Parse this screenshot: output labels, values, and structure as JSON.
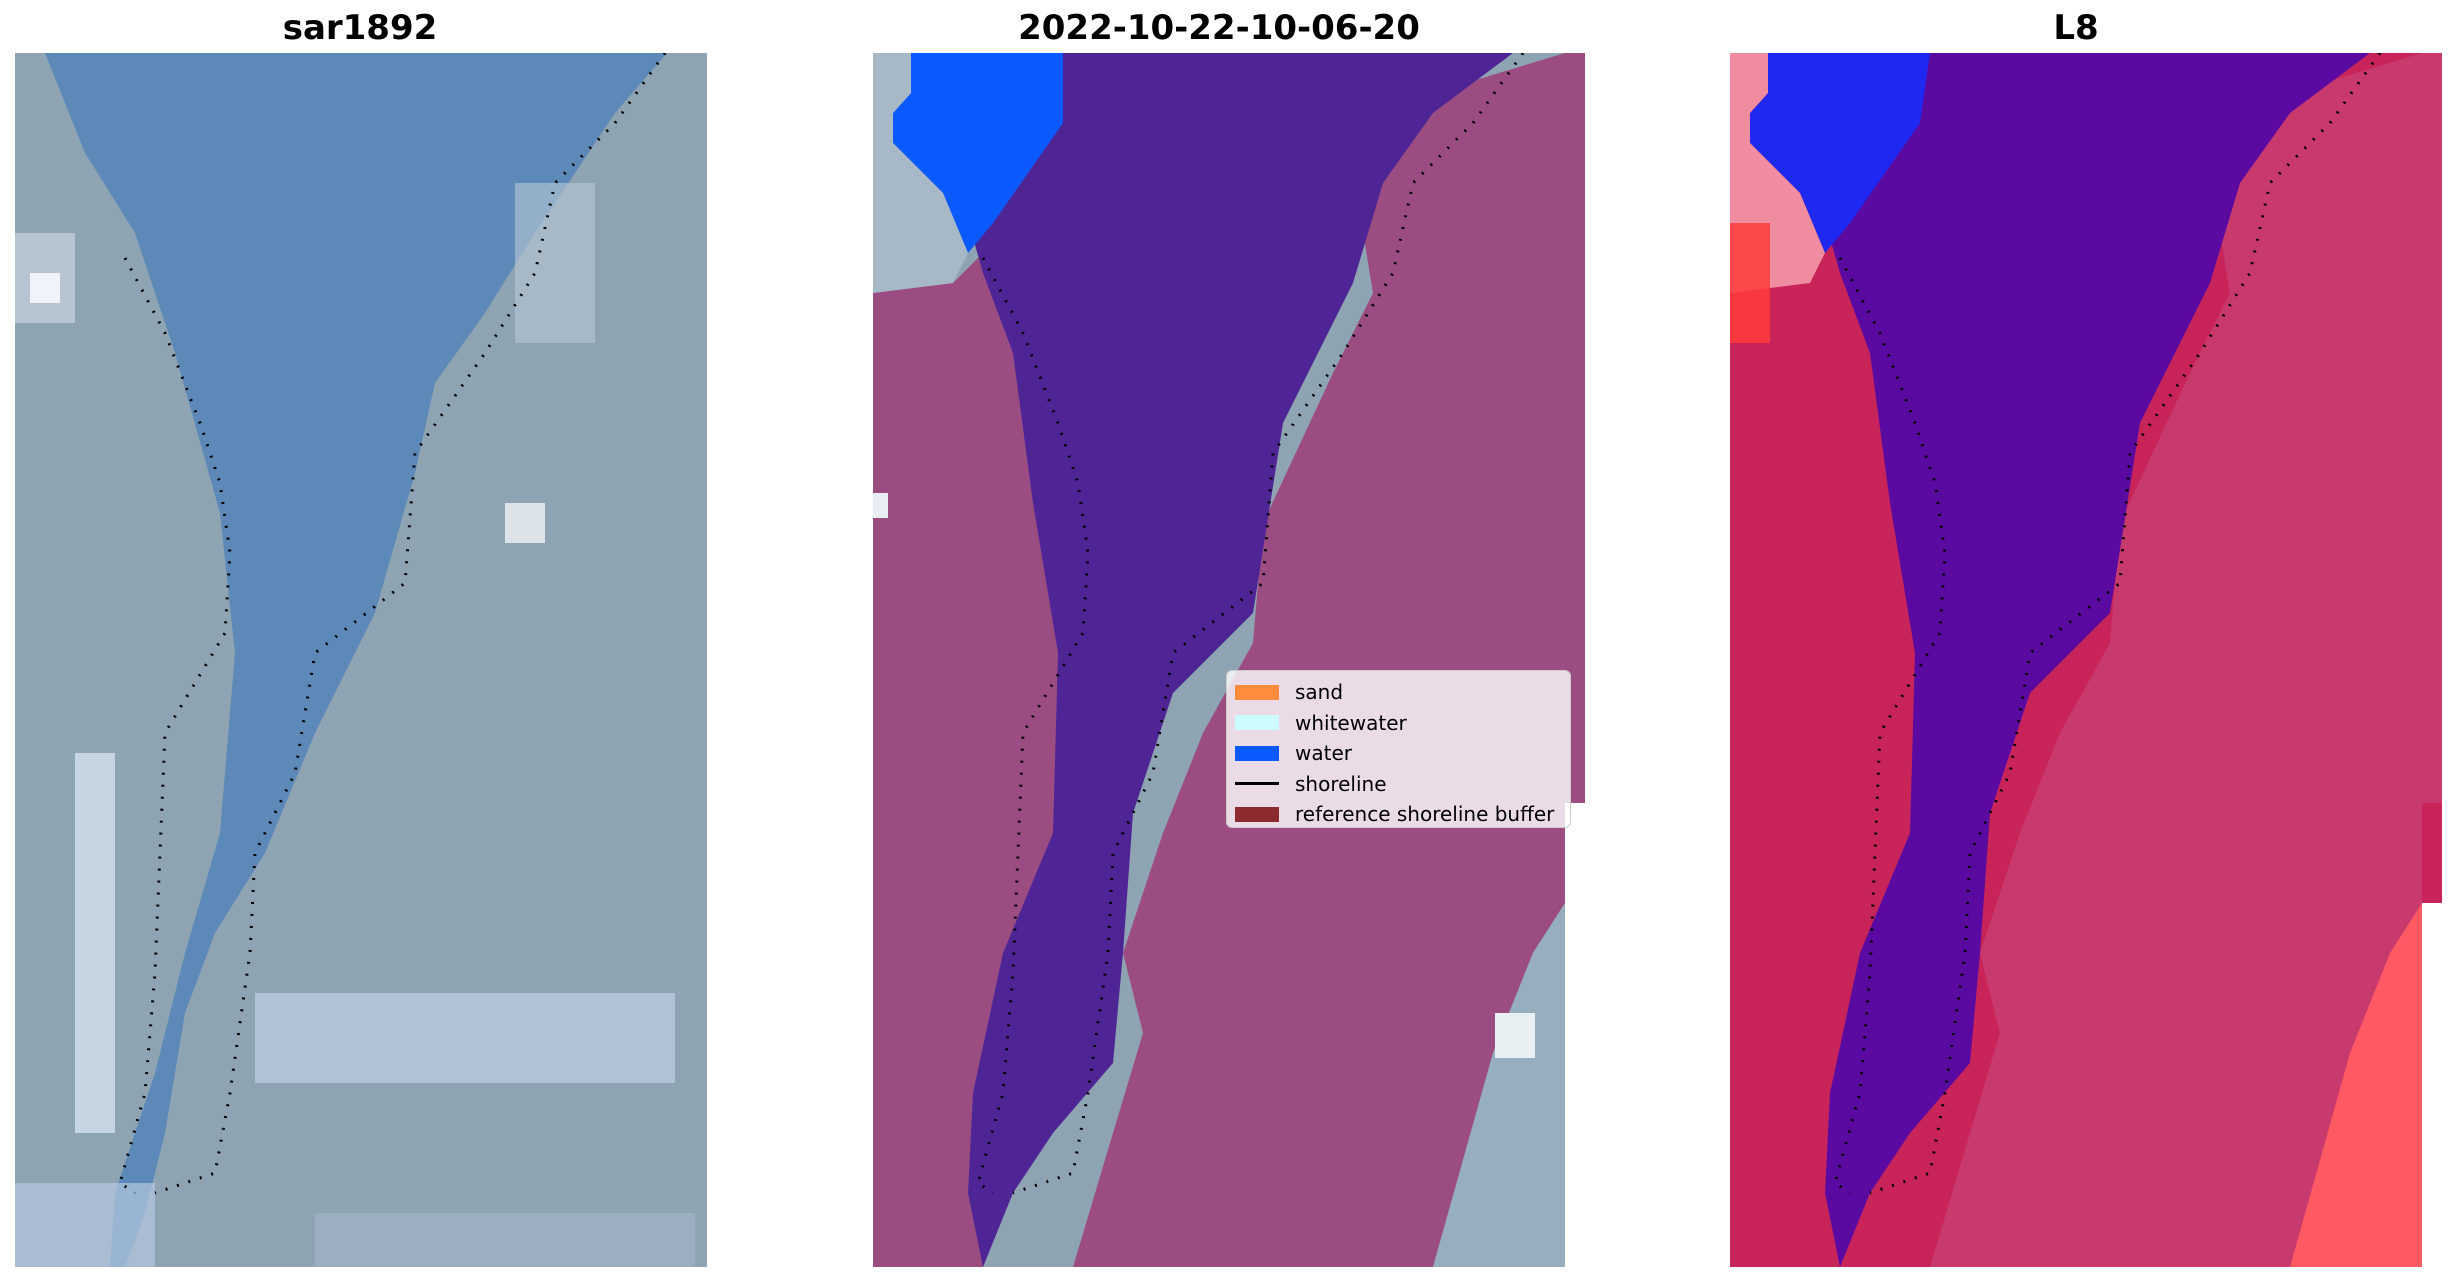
{
  "panels": [
    {
      "title": "sar1892"
    },
    {
      "title": "2022-10-22-10-06-20"
    },
    {
      "title": "L8"
    }
  ],
  "legend": {
    "items": [
      {
        "label": "sand",
        "type": "patch",
        "color": "#ff8c3c"
      },
      {
        "label": "whitewater",
        "type": "patch",
        "color": "#ccfcff"
      },
      {
        "label": "water",
        "type": "patch",
        "color": "#0a5aff"
      },
      {
        "label": "shoreline",
        "type": "line",
        "color": "#000000"
      },
      {
        "label": "reference shoreline buffer",
        "type": "patch",
        "color": "#8b2a2f"
      }
    ]
  },
  "colors": {
    "rgb_land": "#8ea5b5",
    "rgb_water": "#5b88b8",
    "class_land": "#9b4d82",
    "class_water": "#4f2596",
    "class_water_blue": "#0a5aff",
    "index_land": "#c8245a",
    "index_water": "#5a0aa0",
    "index_blue": "#1e28f0",
    "index_bright_red": "#ff3c3c"
  }
}
